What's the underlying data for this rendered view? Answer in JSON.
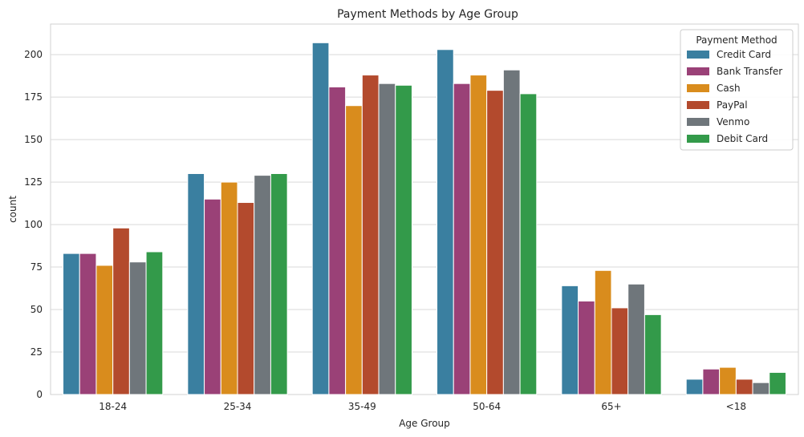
{
  "chart_data": {
    "type": "bar",
    "title": "Payment Methods by Age Group",
    "xlabel": "Age Group",
    "ylabel": "count",
    "ylim": [
      0,
      218
    ],
    "yticks": [
      0,
      25,
      50,
      75,
      100,
      125,
      150,
      175,
      200
    ],
    "grid": "y",
    "categories": [
      "18-24",
      "25-34",
      "35-49",
      "50-64",
      "65+",
      "<18"
    ],
    "legend": {
      "title": "Payment Method",
      "placement": "top-right"
    },
    "series": [
      {
        "name": "Credit Card",
        "color": "#3a7fa0",
        "values": [
          83,
          130,
          207,
          203,
          64,
          9
        ]
      },
      {
        "name": "Bank Transfer",
        "color": "#9a4177",
        "values": [
          83,
          115,
          181,
          183,
          55,
          15
        ]
      },
      {
        "name": "Cash",
        "color": "#d98c1d",
        "values": [
          76,
          125,
          170,
          188,
          73,
          16
        ]
      },
      {
        "name": "PayPal",
        "color": "#b34a2d",
        "values": [
          98,
          113,
          188,
          179,
          51,
          9
        ]
      },
      {
        "name": "Venmo",
        "color": "#6f767b",
        "values": [
          78,
          129,
          183,
          191,
          65,
          7
        ]
      },
      {
        "name": "Debit Card",
        "color": "#339a4a",
        "values": [
          84,
          130,
          182,
          177,
          47,
          13
        ]
      }
    ]
  }
}
